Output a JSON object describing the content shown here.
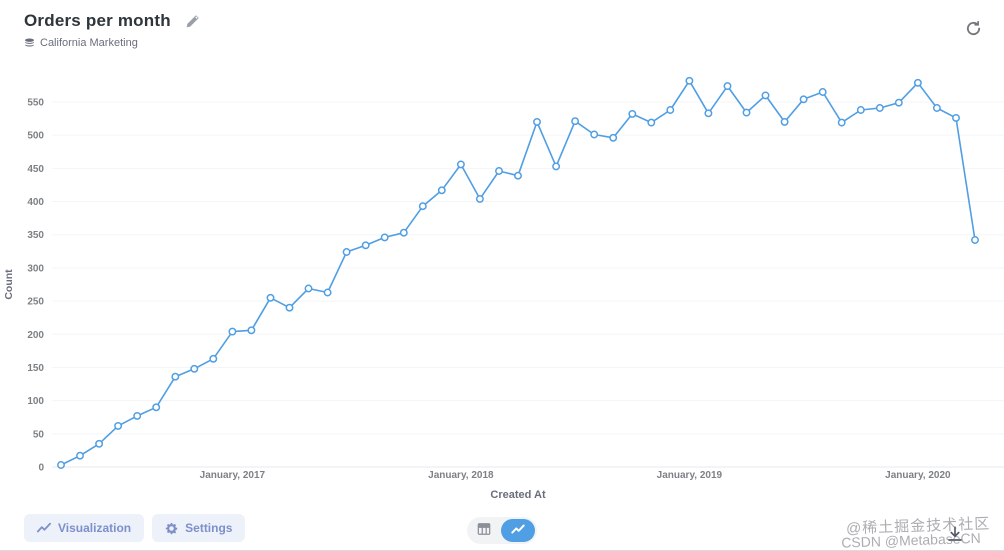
{
  "header": {
    "title": "Orders per month",
    "subtitle": "California Marketing"
  },
  "toolbar": {
    "visualization_label": "Visualization",
    "settings_label": "Settings"
  },
  "watermark": {
    "line1": "@稀土掘金技术社区",
    "line2": "CSDN @MetabaseCN"
  },
  "colors": {
    "brand": "#509ee3",
    "axis_text": "#7c8186",
    "grid": "#f4f5f7",
    "baseline": "#e7e9eb",
    "title_text": "#2e353b",
    "muted_text": "#696e7b"
  },
  "chart_data": {
    "type": "line",
    "title": "Orders per month",
    "xlabel": "Created At",
    "ylabel": "Count",
    "legend": "none",
    "grid": "horizontal-faint",
    "ylim": [
      0,
      600
    ],
    "y_ticks": [
      0,
      50,
      100,
      150,
      200,
      250,
      300,
      350,
      400,
      450,
      500,
      550
    ],
    "x_tick_labels": [
      "January, 2017",
      "January, 2018",
      "January, 2019",
      "January, 2020"
    ],
    "x_tick_indices": [
      9,
      21,
      33,
      45
    ],
    "x": [
      "April 2016",
      "May 2016",
      "June 2016",
      "July 2016",
      "August 2016",
      "September 2016",
      "October 2016",
      "November 2016",
      "December 2016",
      "January 2017",
      "February 2017",
      "March 2017",
      "April 2017",
      "May 2017",
      "June 2017",
      "July 2017",
      "August 2017",
      "September 2017",
      "October 2017",
      "November 2017",
      "December 2017",
      "January 2018",
      "February 2018",
      "March 2018",
      "April 2018",
      "May 2018",
      "June 2018",
      "July 2018",
      "August 2018",
      "September 2018",
      "October 2018",
      "November 2018",
      "December 2018",
      "January 2019",
      "February 2019",
      "March 2019",
      "April 2019",
      "May 2019",
      "June 2019",
      "July 2019",
      "August 2019",
      "September 2019",
      "October 2019",
      "November 2019",
      "December 2019",
      "January 2020",
      "February 2020",
      "March 2020",
      "April 2020"
    ],
    "values": [
      3,
      17,
      35,
      62,
      77,
      90,
      136,
      148,
      163,
      204,
      206,
      255,
      240,
      269,
      263,
      324,
      334,
      346,
      353,
      393,
      417,
      456,
      404,
      446,
      439,
      520,
      453,
      521,
      501,
      496,
      532,
      519,
      538,
      582,
      533,
      574,
      534,
      560,
      520,
      554,
      565,
      519,
      538,
      541,
      549,
      579,
      541,
      526,
      342
    ]
  }
}
